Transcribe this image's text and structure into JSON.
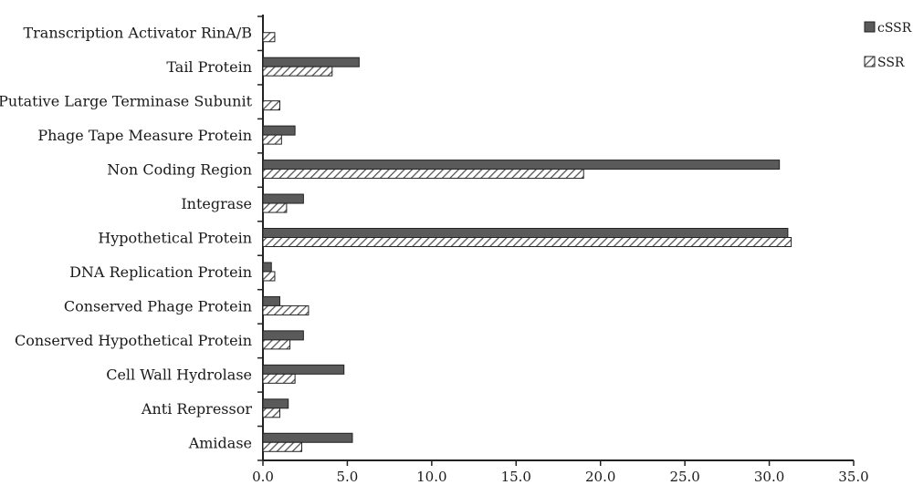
{
  "chart_data": {
    "type": "bar",
    "orientation": "horizontal",
    "categories": [
      "Transcription Activator RinA/B",
      "Tail Protein",
      "Putative Large Terminase Subunit",
      "Phage Tape Measure Protein",
      "Non Coding Region",
      "Integrase",
      "Hypothetical Protein",
      "DNA Replication Protein",
      "Conserved Phage Protein",
      "Conserved Hypothetical Protein",
      "Cell Wall Hydrolase",
      "Anti Repressor",
      "Amidase"
    ],
    "series": [
      {
        "name": "cSSR",
        "fill": "solid",
        "color": "#5a5a5a",
        "values": [
          0,
          5.7,
          0,
          1.9,
          30.6,
          2.4,
          31.1,
          0.5,
          1.0,
          2.4,
          4.8,
          1.5,
          5.3
        ]
      },
      {
        "name": "SSR",
        "fill": "hatched",
        "color": "#555555",
        "values": [
          0.7,
          4.1,
          1.0,
          1.1,
          19.0,
          1.4,
          31.3,
          0.7,
          2.7,
          1.6,
          1.9,
          1.0,
          2.3
        ]
      }
    ],
    "xticks": [
      "0.0",
      "5.0",
      "10.0",
      "15.0",
      "20.0",
      "25.0",
      "30.0",
      "35.0"
    ],
    "xlim": [
      0,
      35
    ],
    "title": "",
    "xlabel": "",
    "ylabel": "",
    "grid": false,
    "legend_position": "top-right"
  }
}
